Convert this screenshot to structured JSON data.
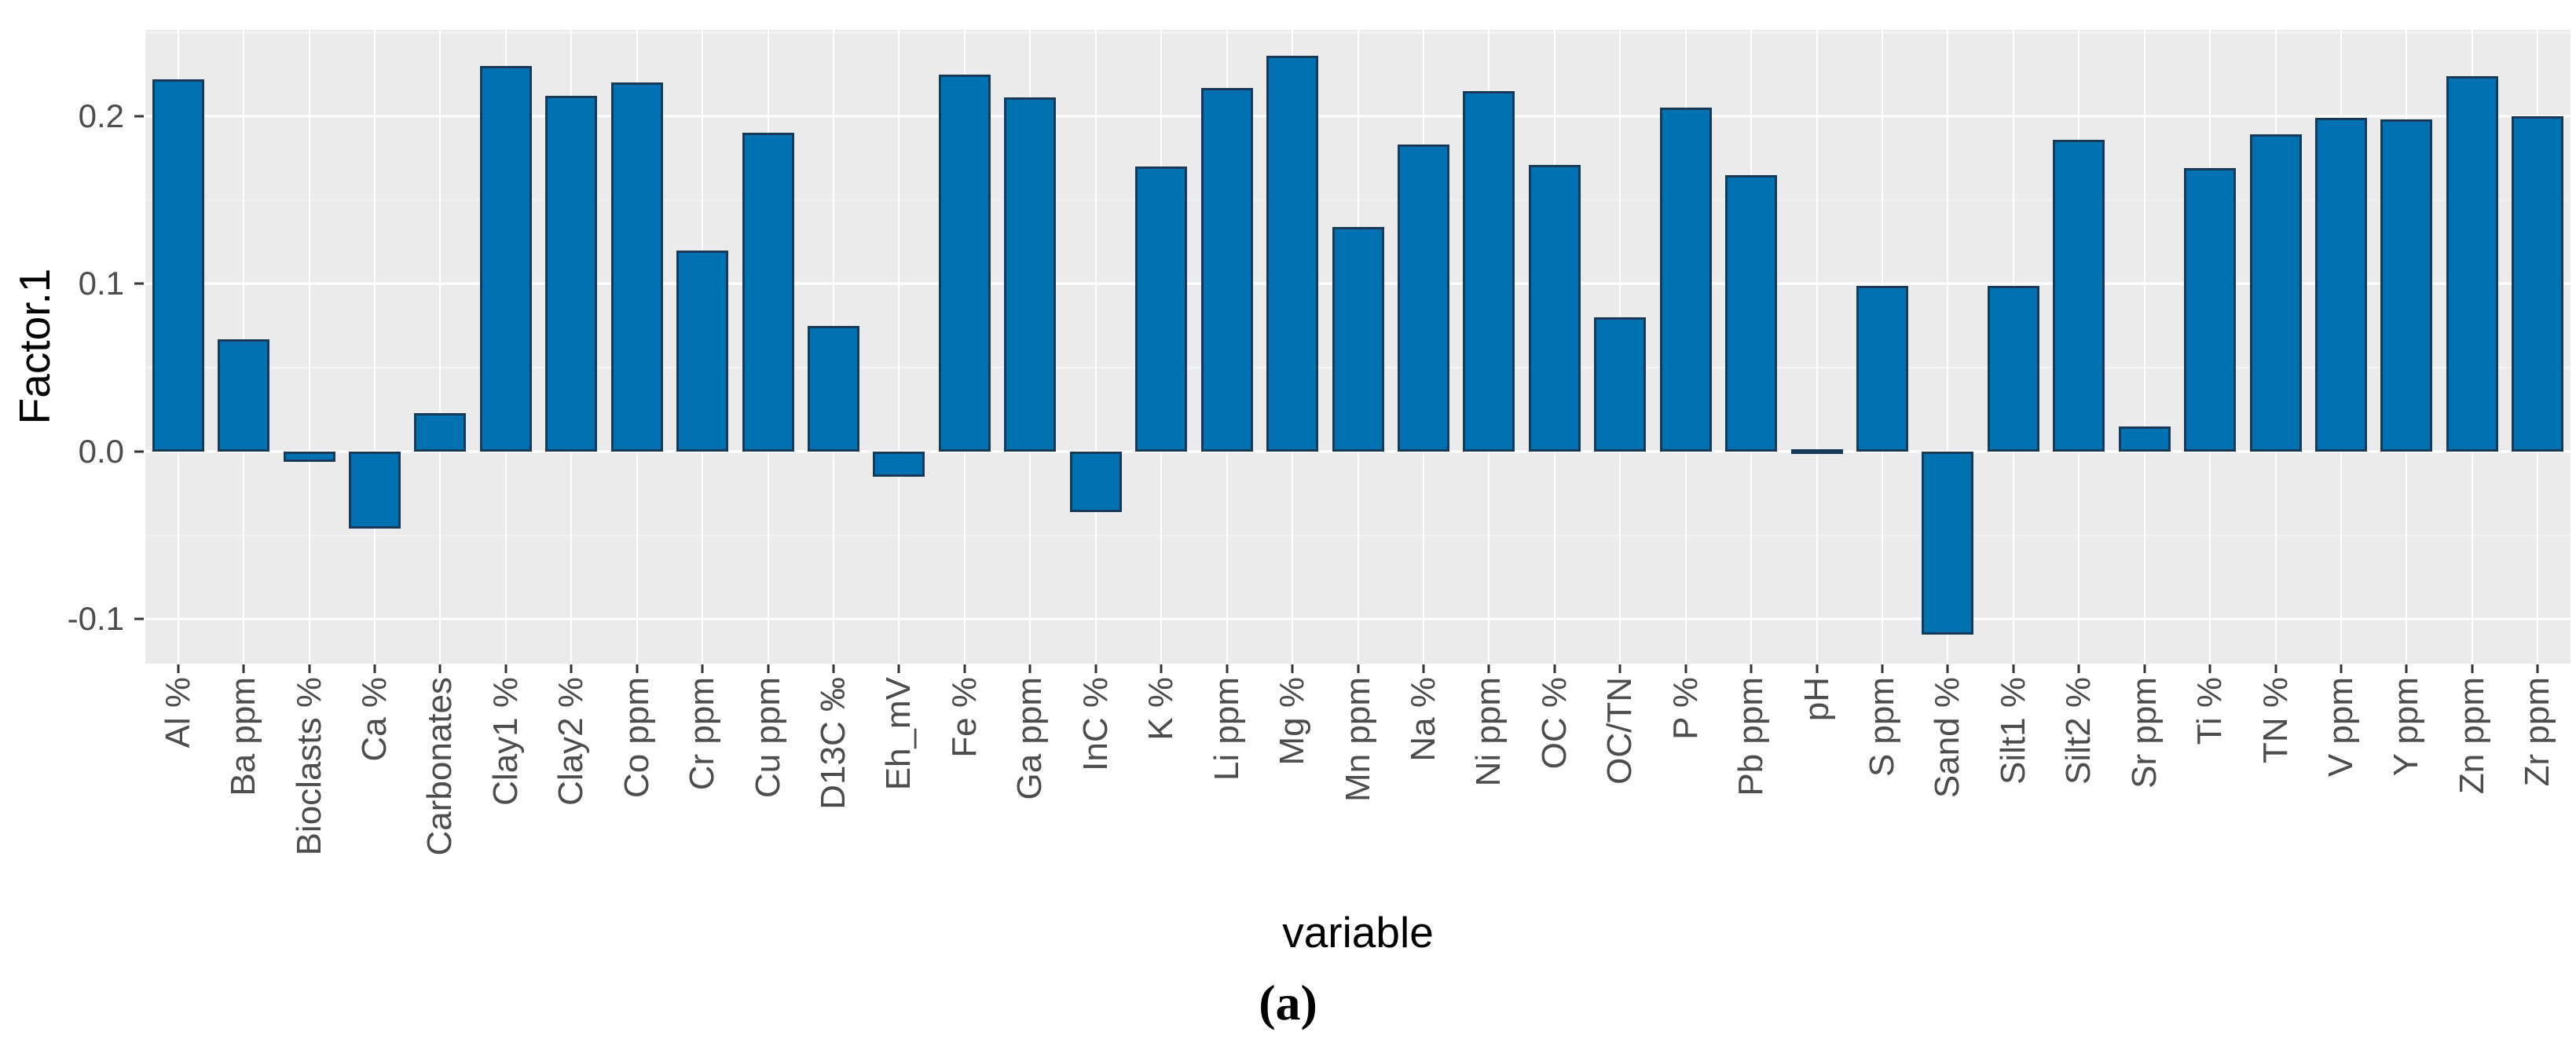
{
  "chart_data": {
    "type": "bar",
    "title": "",
    "xlabel": "variable",
    "ylabel": "Factor.1",
    "caption": "(a)",
    "categories": [
      "Al %",
      "Ba ppm",
      "Bioclasts %",
      "Ca %",
      "Carbonates",
      "Clay1 %",
      "Clay2 %",
      "Co ppm",
      "Cr ppm",
      "Cu ppm",
      "D13C ‰",
      "Eh_mV",
      "Fe %",
      "Ga ppm",
      "InC %",
      "K %",
      "Li ppm",
      "Mg %",
      "Mn ppm",
      "Na %",
      "Ni ppm",
      "OC %",
      "OC/TN",
      "P %",
      "Pb ppm",
      "pH",
      "S ppm",
      "Sand %",
      "Silt1 %",
      "Silt2 %",
      "Sr ppm",
      "Ti %",
      "TN %",
      "V ppm",
      "Y ppm",
      "Zn ppm",
      "Zr ppm"
    ],
    "values": [
      0.222,
      0.067,
      -0.006,
      -0.046,
      0.023,
      0.23,
      0.212,
      0.22,
      0.12,
      0.19,
      0.075,
      -0.015,
      0.225,
      0.211,
      -0.036,
      0.17,
      0.217,
      0.236,
      0.134,
      0.183,
      0.215,
      0.171,
      0.08,
      0.205,
      0.165,
      0.0,
      0.099,
      -0.109,
      0.099,
      0.186,
      0.015,
      0.169,
      0.189,
      0.199,
      0.198,
      0.224,
      0.2
    ],
    "ylim": [
      -0.1265,
      0.2515
    ],
    "yticks": [
      {
        "label": "0.2",
        "value": 0.2
      },
      {
        "label": "0.1",
        "value": 0.1
      },
      {
        "label": "0.0",
        "value": 0.0
      },
      {
        "label": "-0.1",
        "value": -0.1
      }
    ],
    "minor_gridlines": [
      0.25,
      0.15,
      0.05,
      -0.05
    ],
    "grid": "on",
    "legend": "none",
    "colors": {
      "bar_fill": "#0072B2",
      "bar_stroke": "#173A58",
      "panel_bg": "#EBEBEB",
      "grid_major": "#FFFFFF",
      "grid_minor": "#F6F6F6",
      "tick_label": "#4D4D4D",
      "axis_title": "#000000",
      "tick_mark": "#333333"
    }
  }
}
